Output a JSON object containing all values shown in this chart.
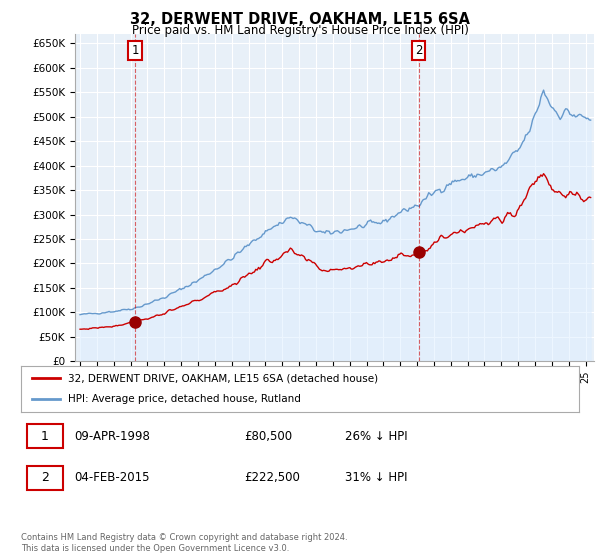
{
  "title": "32, DERWENT DRIVE, OAKHAM, LE15 6SA",
  "subtitle": "Price paid vs. HM Land Registry's House Price Index (HPI)",
  "ylim": [
    0,
    670000
  ],
  "xlim_start": 1994.7,
  "xlim_end": 2025.5,
  "sale1_year": 1998.27,
  "sale1_price": 80500,
  "sale1_label": "1",
  "sale2_year": 2015.09,
  "sale2_price": 222500,
  "sale2_label": "2",
  "red_color": "#cc0000",
  "blue_color": "#6699cc",
  "blue_fill": "#ddeeff",
  "background_color": "#ffffff",
  "grid_color": "#cccccc",
  "legend_label_red": "32, DERWENT DRIVE, OAKHAM, LE15 6SA (detached house)",
  "legend_label_blue": "HPI: Average price, detached house, Rutland",
  "table_row1": [
    "1",
    "09-APR-1998",
    "£80,500",
    "26% ↓ HPI"
  ],
  "table_row2": [
    "2",
    "04-FEB-2015",
    "£222,500",
    "31% ↓ HPI"
  ],
  "footnote": "Contains HM Land Registry data © Crown copyright and database right 2024.\nThis data is licensed under the Open Government Licence v3.0."
}
